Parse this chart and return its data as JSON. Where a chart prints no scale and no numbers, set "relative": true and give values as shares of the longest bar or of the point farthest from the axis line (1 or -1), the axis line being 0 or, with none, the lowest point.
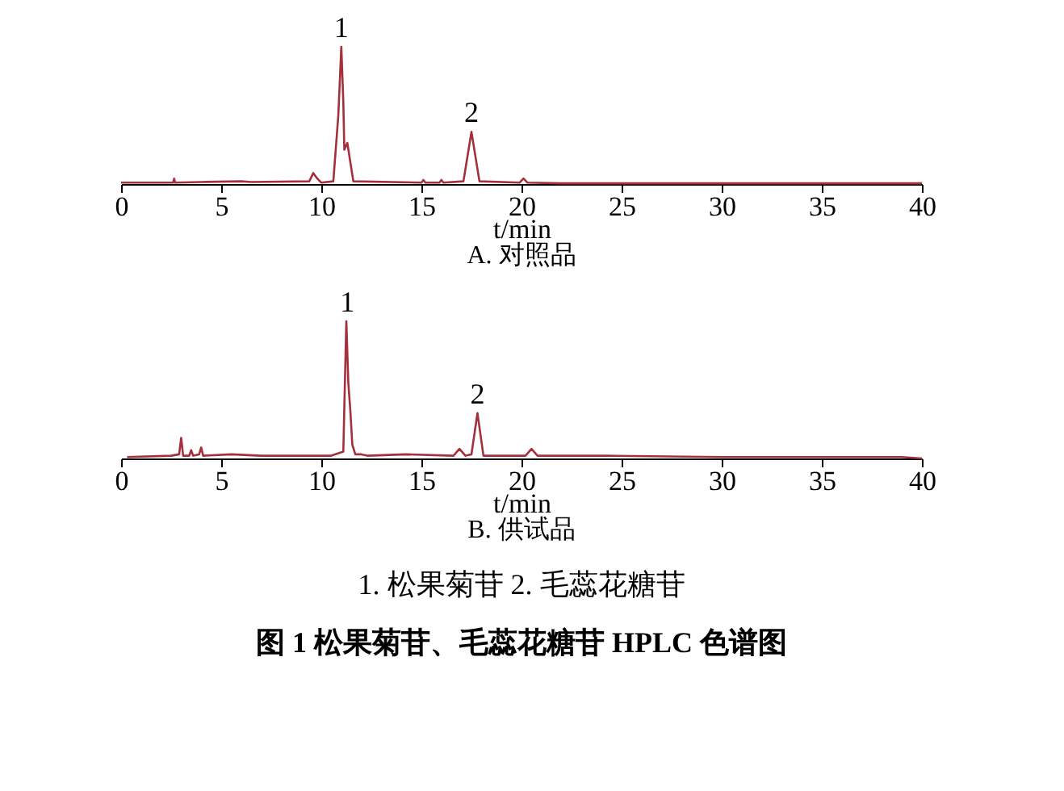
{
  "chart_data": [
    {
      "type": "line",
      "title": "A. 对照品",
      "xlabel": "t/min",
      "relative": true,
      "tick_labels": "x",
      "grid": false,
      "marker": "none",
      "line_style": "solid",
      "xlim": [
        0,
        40
      ],
      "xticks": [
        0,
        5,
        10,
        15,
        20,
        25,
        30,
        35,
        40
      ],
      "series": [
        {
          "color": "#a3303c",
          "x": [
            0,
            2.6,
            2.65,
            2.7,
            4,
            6,
            6.5,
            9.4,
            9.6,
            9.8,
            10.0,
            10.6,
            10.85,
            11.0,
            11.1,
            11.15,
            11.3,
            11.6,
            15.0,
            15.1,
            15.2,
            15.9,
            16.0,
            16.1,
            17.1,
            17.3,
            17.5,
            17.7,
            17.9,
            19.9,
            20.1,
            20.3,
            22,
            40
          ],
          "values": [
            0.01,
            0.01,
            0.04,
            0.01,
            0.015,
            0.02,
            0.015,
            0.02,
            0.08,
            0.04,
            0.01,
            0.02,
            0.5,
            1,
            0.6,
            0.25,
            0.3,
            0.02,
            0.01,
            0.03,
            0.01,
            0.01,
            0.03,
            0.01,
            0.02,
            0.2,
            0.38,
            0.2,
            0.02,
            0.01,
            0.04,
            0.01,
            0.005,
            0.005
          ]
        }
      ],
      "annotations": [
        {
          "text": "1",
          "x": 11.0,
          "y": 1.0
        },
        {
          "text": "2",
          "x": 17.5,
          "y": 0.38
        }
      ]
    },
    {
      "type": "line",
      "title": "B. 供试品",
      "xlabel": "t/min",
      "relative": true,
      "tick_labels": "x",
      "grid": false,
      "marker": "none",
      "line_style": "solid",
      "xlim": [
        0,
        40
      ],
      "xticks": [
        0,
        5,
        10,
        15,
        20,
        25,
        30,
        35,
        40
      ],
      "series": [
        {
          "color": "#a3303c",
          "x": [
            0.3,
            2.5,
            2.9,
            3.0,
            3.1,
            3.4,
            3.5,
            3.6,
            3.9,
            4.0,
            4.1,
            5.5,
            7,
            8,
            10.5,
            11.1,
            11.25,
            11.35,
            11.45,
            11.55,
            11.7,
            12,
            12.3,
            14.2,
            16.6,
            16.9,
            17.2,
            17.5,
            17.8,
            18.1,
            20.2,
            20.5,
            20.8,
            24.3,
            30,
            39,
            40
          ],
          "values": [
            0.01,
            0.02,
            0.03,
            0.15,
            0.02,
            0.02,
            0.06,
            0.02,
            0.03,
            0.08,
            0.02,
            0.03,
            0.02,
            0.02,
            0.02,
            0.05,
            1,
            0.55,
            0.35,
            0.1,
            0.03,
            0.03,
            0.02,
            0.03,
            0.02,
            0.07,
            0.02,
            0.03,
            0.33,
            0.02,
            0.02,
            0.07,
            0.02,
            0.02,
            0.01,
            0.01,
            0.0
          ]
        }
      ],
      "annotations": [
        {
          "text": "1",
          "x": 11.3,
          "y": 1.0
        },
        {
          "text": "2",
          "x": 17.8,
          "y": 0.33
        },
        "1.  松果菊苷    2.  毛蕊花糖苷",
        "图 1    松果菊苷、毛蕊花糖苷 HPLC 色谱图"
      ]
    }
  ]
}
